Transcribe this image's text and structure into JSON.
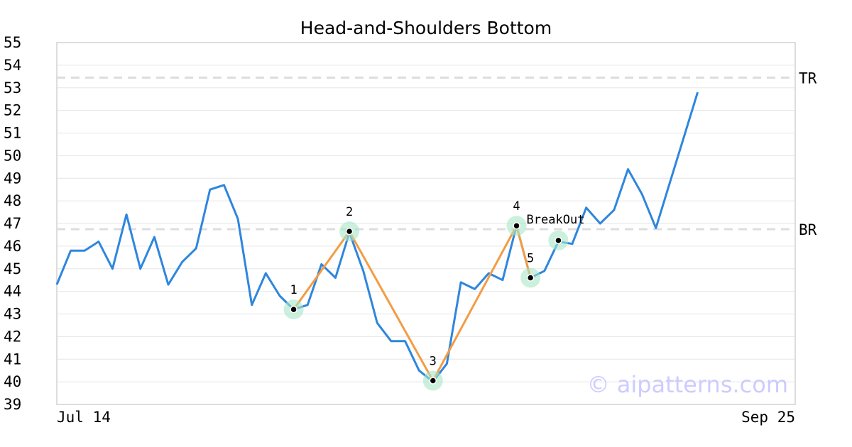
{
  "chart_data": {
    "type": "line",
    "title": "Head-and-Shoulders Bottom",
    "xlabel": "",
    "ylabel": "",
    "ylim": [
      39,
      55
    ],
    "yticks": [
      39,
      40,
      41,
      42,
      43,
      44,
      45,
      46,
      47,
      48,
      49,
      50,
      51,
      52,
      53,
      54,
      55
    ],
    "x_tick_labels": [
      {
        "index": 0,
        "label": "Jul 14"
      },
      {
        "index": 53,
        "label": "Sep 25"
      }
    ],
    "grid": true,
    "series": [
      {
        "color": "#2e86de",
        "values": [
          44.3,
          45.8,
          45.8,
          46.2,
          45.0,
          47.4,
          45.0,
          46.4,
          44.3,
          45.3,
          45.9,
          48.5,
          48.7,
          47.2,
          43.4,
          44.8,
          43.8,
          43.2,
          43.4,
          45.2,
          44.6,
          46.6,
          44.9,
          42.6,
          41.8,
          41.8,
          40.5,
          40.0,
          40.8,
          44.4,
          44.1,
          44.8,
          44.5,
          46.9,
          44.6,
          44.9,
          46.2,
          46.1,
          47.7,
          47.0,
          47.6,
          49.4,
          48.3,
          46.8,
          48.8,
          50.8,
          52.8
        ]
      }
    ],
    "pattern": {
      "color": "#f39c45",
      "points": [
        {
          "label": "1",
          "index": 17,
          "value": 43.2
        },
        {
          "label": "2",
          "index": 21,
          "value": 46.65
        },
        {
          "label": "3",
          "index": 27,
          "value": 40.05
        },
        {
          "label": "4",
          "index": 33,
          "value": 46.9
        },
        {
          "label": "5",
          "index": 34,
          "value": 44.6
        }
      ]
    },
    "breakout": {
      "label": "BreakOut",
      "index": 36,
      "value": 46.25
    },
    "reference_lines": [
      {
        "label": "TR",
        "value": 53.45
      },
      {
        "label": "BR",
        "value": 46.75
      }
    ],
    "watermark": "© aipatterns.com"
  }
}
